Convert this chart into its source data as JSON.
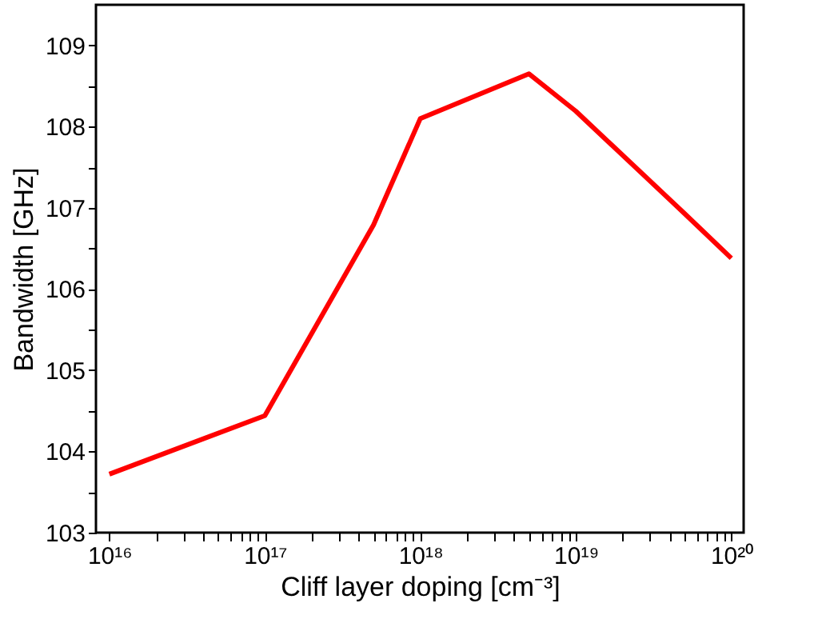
{
  "chart_data": {
    "type": "line",
    "xlabel": "Cliff layer doping [cm⁻³]",
    "ylabel": "Bandwidth [GHz]",
    "x": [
      1e+16,
      1e+17,
      5e+17,
      1e+18,
      5e+18,
      1e+19,
      5e+19,
      1e+20
    ],
    "series": [
      {
        "color": "#ff0000",
        "values": [
          103.72,
          104.44,
          106.79,
          108.1,
          108.65,
          108.19,
          106.93,
          106.38
        ]
      }
    ],
    "log": "x",
    "xlim": [
      8200000000000000.0,
      1.2e+20
    ],
    "ylim": [
      103,
      109.5
    ],
    "xticks": [
      {
        "value": 1e+16,
        "label": "10¹⁶"
      },
      {
        "value": 2e+16,
        "label": null
      },
      {
        "value": 3e+16,
        "label": null
      },
      {
        "value": 4e+16,
        "label": null
      },
      {
        "value": 5e+16,
        "label": null
      },
      {
        "value": 6e+16,
        "label": null
      },
      {
        "value": 7e+16,
        "label": null
      },
      {
        "value": 8e+16,
        "label": null
      },
      {
        "value": 9e+16,
        "label": null
      },
      {
        "value": 1e+17,
        "label": "10¹⁷"
      },
      {
        "value": 2e+17,
        "label": null
      },
      {
        "value": 3e+17,
        "label": null
      },
      {
        "value": 4e+17,
        "label": null
      },
      {
        "value": 5e+17,
        "label": null
      },
      {
        "value": 6e+17,
        "label": null
      },
      {
        "value": 7e+17,
        "label": null
      },
      {
        "value": 8e+17,
        "label": null
      },
      {
        "value": 9e+17,
        "label": null
      },
      {
        "value": 1e+18,
        "label": "10¹⁸"
      },
      {
        "value": 2e+18,
        "label": null
      },
      {
        "value": 3e+18,
        "label": null
      },
      {
        "value": 4e+18,
        "label": null
      },
      {
        "value": 5e+18,
        "label": null
      },
      {
        "value": 6e+18,
        "label": null
      },
      {
        "value": 7e+18,
        "label": null
      },
      {
        "value": 8e+18,
        "label": null
      },
      {
        "value": 9e+18,
        "label": null
      },
      {
        "value": 1e+19,
        "label": "10¹⁹"
      },
      {
        "value": 2e+19,
        "label": null
      },
      {
        "value": 3e+19,
        "label": null
      },
      {
        "value": 4e+19,
        "label": null
      },
      {
        "value": 5e+19,
        "label": null
      },
      {
        "value": 6e+19,
        "label": null
      },
      {
        "value": 7e+19,
        "label": null
      },
      {
        "value": 8e+19,
        "label": null
      },
      {
        "value": 9e+19,
        "label": null
      },
      {
        "value": 1e+20,
        "label": "10²⁰"
      }
    ],
    "yticks": [
      103,
      {
        "value": 103.5,
        "label": null
      },
      104,
      {
        "value": 104.5,
        "label": null
      },
      105,
      {
        "value": 105.5,
        "label": null
      },
      106,
      {
        "value": 106.5,
        "label": null
      },
      107,
      {
        "value": 107.5,
        "label": null
      },
      108,
      {
        "value": 108.5,
        "label": null
      },
      109
    ],
    "grid": false,
    "marker": "none",
    "line_style": "solid"
  }
}
